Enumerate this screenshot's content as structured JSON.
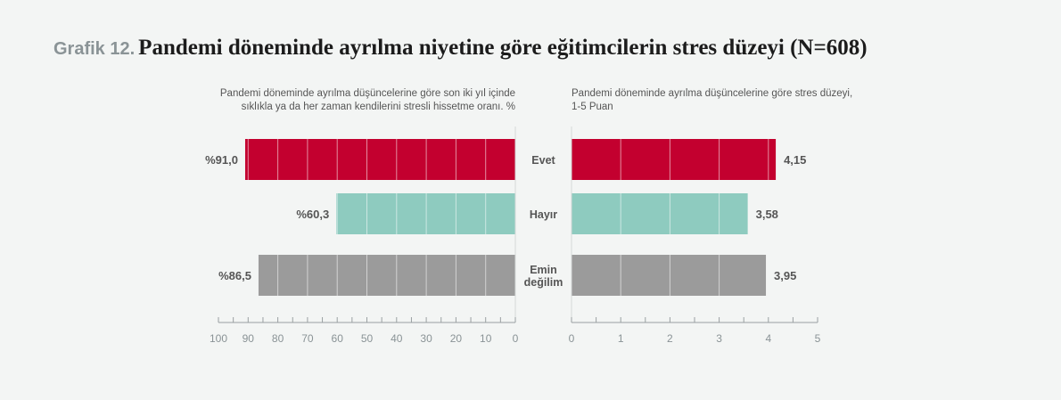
{
  "title": {
    "prefix": "Grafik 12.",
    "main": "Pandemi döneminde ayrılma niyetine göre eğitimcilerin stres düzeyi (N=608)"
  },
  "colors": {
    "evet": "#c3002f",
    "hayir": "#8ecbbf",
    "emin_degilim": "#9b9b9b",
    "background": "#f3f5f4"
  },
  "chart_data": [
    {
      "type": "bar",
      "orientation": "horizontal-reversed",
      "title": "Pandemi döneminde ayrılma düşüncelerine göre son iki yıl içinde sıklıkla ya da her zaman kendilerini stresli hissetme oranı. %",
      "title_lines": [
        "Pandemi döneminde ayrılma düşüncelerine göre son iki yıl içinde",
        "sıklıkla ya da her zaman kendilerini stresli hissetme oranı. %"
      ],
      "categories": [
        "Evet",
        "Hayır",
        "Emin değilim"
      ],
      "values": [
        91.0,
        60.3,
        86.5
      ],
      "value_labels": [
        "%91,0",
        "%60,3",
        "%86,5"
      ],
      "xlim": [
        0,
        100
      ],
      "ticks": [
        100,
        90,
        80,
        70,
        60,
        50,
        40,
        30,
        20,
        10,
        0
      ]
    },
    {
      "type": "bar",
      "orientation": "horizontal",
      "title": "Pandemi döneminde ayrılma düşüncelerine göre stres düzeyi, 1-5 Puan",
      "title_lines": [
        "Pandemi döneminde ayrılma düşüncelerine göre stres düzeyi,",
        "1-5 Puan"
      ],
      "categories": [
        "Evet",
        "Hayır",
        "Emin değilim"
      ],
      "values": [
        4.15,
        3.58,
        3.95
      ],
      "value_labels": [
        "4,15",
        "3,58",
        "3,95"
      ],
      "xlim": [
        0,
        5
      ],
      "ticks": [
        0,
        1,
        2,
        3,
        4,
        5
      ]
    }
  ],
  "category_labels": [
    [
      "Evet"
    ],
    [
      "Hayır"
    ],
    [
      "Emin",
      "değilim"
    ]
  ]
}
